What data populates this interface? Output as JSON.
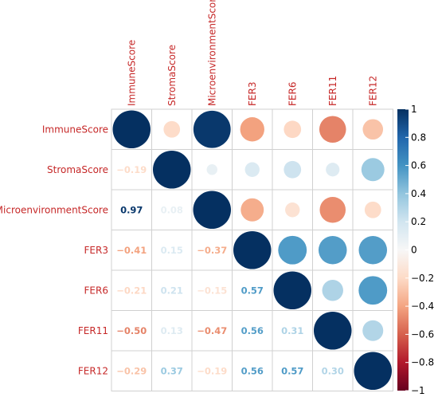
{
  "chart_data": {
    "type": "heatmap",
    "variant": "correlation-matrix-mixed",
    "variables": [
      "ImmuneScore",
      "StromaScore",
      "MicroenvironmentScore",
      "FER3",
      "FER6",
      "FER11",
      "FER12"
    ],
    "matrix": [
      [
        1.0,
        -0.19,
        0.97,
        -0.41,
        -0.21,
        -0.5,
        -0.29
      ],
      [
        -0.19,
        1.0,
        0.08,
        0.15,
        0.21,
        0.13,
        0.37
      ],
      [
        0.97,
        0.08,
        1.0,
        -0.37,
        -0.15,
        -0.47,
        -0.19
      ],
      [
        -0.41,
        0.15,
        -0.37,
        1.0,
        0.57,
        0.56,
        0.56
      ],
      [
        -0.21,
        0.21,
        -0.15,
        0.57,
        1.0,
        0.31,
        0.57
      ],
      [
        -0.5,
        0.13,
        -0.47,
        0.56,
        0.31,
        1.0,
        0.3
      ],
      [
        -0.29,
        0.37,
        -0.19,
        0.56,
        0.57,
        0.3,
        1.0
      ]
    ],
    "lower_triangle": "numbers",
    "upper_triangle": "circles",
    "colorbar": {
      "range": [
        -1,
        1
      ],
      "ticks": [
        "1",
        "0.8",
        "0.6",
        "0.4",
        "0.2",
        "0",
        "−0.2",
        "−0.4",
        "−0.6",
        "−0.8",
        "−1"
      ],
      "colors": {
        "negative": "#67001f",
        "mid": "#f7f7f7",
        "positive": "#053061"
      }
    },
    "title": "",
    "xlabel": "",
    "ylabel": ""
  }
}
